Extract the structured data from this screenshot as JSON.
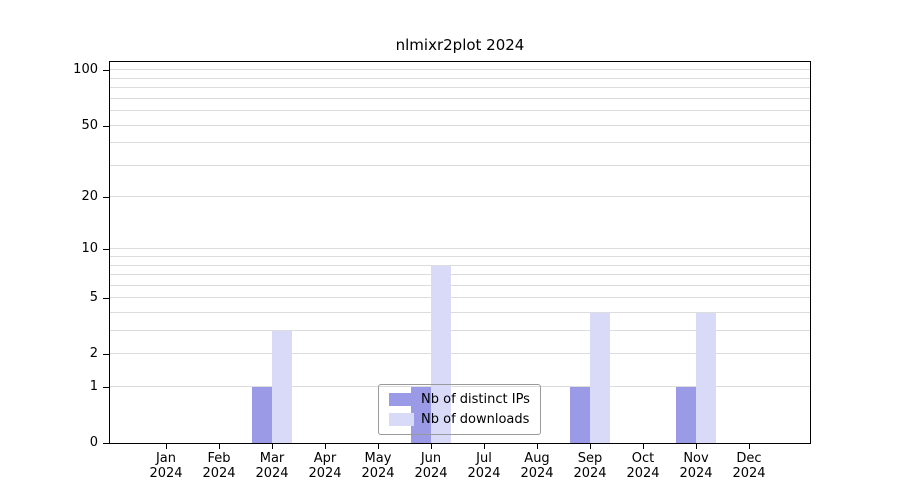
{
  "chart_data": {
    "type": "bar",
    "title": "nlmixr2plot 2024",
    "categories": [
      "Jan 2024",
      "Feb 2024",
      "Mar 2024",
      "Apr 2024",
      "May 2024",
      "Jun 2024",
      "Jul 2024",
      "Aug 2024",
      "Sep 2024",
      "Oct 2024",
      "Nov 2024",
      "Dec 2024"
    ],
    "series": [
      {
        "name": "Nb of distinct IPs",
        "color": "#9a9ae6",
        "values": [
          0,
          0,
          1,
          0,
          0,
          1,
          0,
          0,
          1,
          0,
          1,
          0
        ]
      },
      {
        "name": "Nb of downloads",
        "color": "#d9d9f8",
        "values": [
          0,
          0,
          3,
          0,
          0,
          8,
          0,
          0,
          4,
          0,
          4,
          0
        ]
      }
    ],
    "y_scale": "log10(1+x)",
    "y_ticks": [
      100,
      50,
      20,
      10,
      5,
      2,
      1,
      0
    ],
    "grid_values": [
      1,
      2,
      3,
      4,
      5,
      6,
      7,
      8,
      9,
      10,
      20,
      30,
      40,
      50,
      60,
      70,
      80,
      90,
      100
    ],
    "ylim": [
      0,
      111
    ],
    "grid": true,
    "legend_position": "bottom-center"
  }
}
